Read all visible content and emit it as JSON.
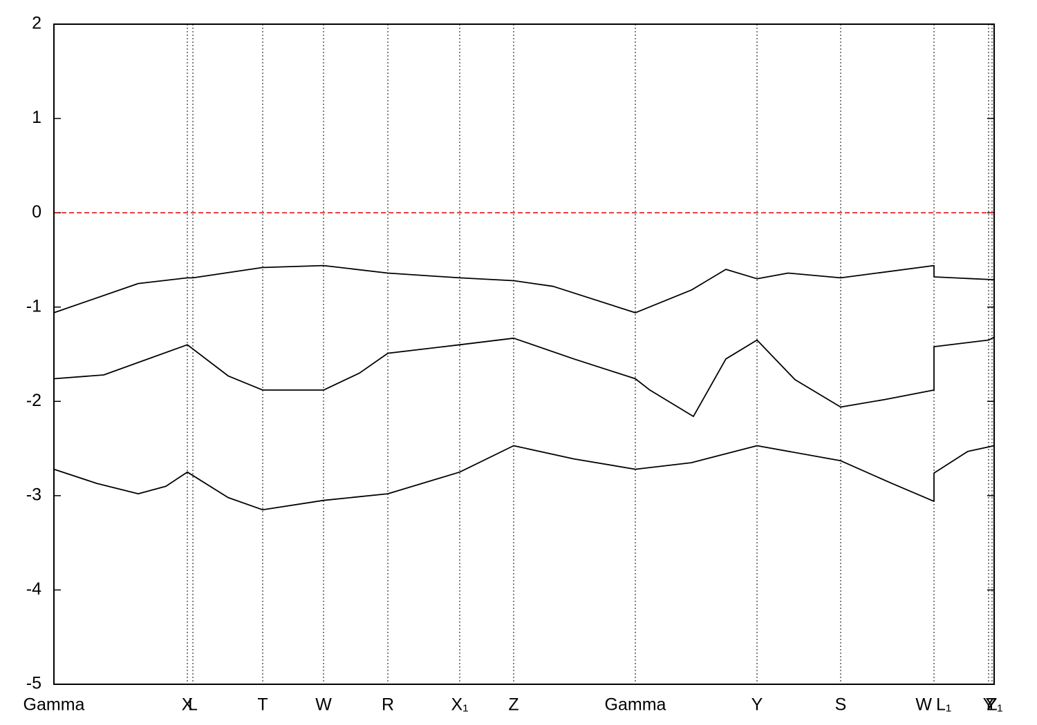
{
  "chart_data": {
    "type": "line",
    "xlim": [
      0,
      13.6
    ],
    "ylim": [
      -5,
      2
    ],
    "yticks": [
      -5,
      -4,
      -3,
      -2,
      -1,
      0,
      1,
      2
    ],
    "kpoints": [
      {
        "label": "Gamma",
        "x": 0
      },
      {
        "label": "X",
        "x": 1.93
      },
      {
        "label": "L",
        "x": 2.01
      },
      {
        "label": "T",
        "x": 3.02
      },
      {
        "label": "W",
        "x": 3.9
      },
      {
        "label": "R",
        "x": 4.83
      },
      {
        "label": "X₁",
        "x": 5.87
      },
      {
        "label": "Z",
        "x": 6.65
      },
      {
        "label": "Gamma",
        "x": 8.41
      },
      {
        "label": "Y",
        "x": 10.17
      },
      {
        "label": "S",
        "x": 11.38
      },
      {
        "label": "W",
        "x": 12.73
      },
      {
        "label": "L₁",
        "x": 12.73
      },
      {
        "label": "Y",
        "x": 13.52
      },
      {
        "label": "Z",
        "x": 13.57
      },
      {
        "label": "Y₁",
        "x": 13.6
      }
    ],
    "fermi_level": 0,
    "fermi_color": "#e00000",
    "series": [
      {
        "color": "#000000",
        "x": [
          0,
          1.22,
          1.93,
          2.01,
          3.02,
          3.9,
          4.83,
          5.87,
          6.65,
          7.22,
          8.41,
          9.22,
          9.72,
          10.17,
          10.62,
          11.38,
          12.73,
          12.73,
          13.6
        ],
        "values": [
          -1.06,
          -0.75,
          -0.69,
          -0.69,
          -0.58,
          -0.56,
          -0.64,
          -0.69,
          -0.72,
          -0.78,
          -1.06,
          -0.82,
          -0.6,
          -0.7,
          -0.64,
          -0.69,
          -0.56,
          -0.68,
          -0.71
        ]
      },
      {
        "color": "#000000",
        "x": [
          0,
          0.72,
          1.93,
          2.52,
          3.02,
          3.9,
          4.42,
          4.83,
          5.87,
          6.65,
          7.52,
          8.41,
          8.62,
          9.25,
          9.72,
          10.17,
          10.72,
          11.38,
          12.02,
          12.73,
          12.73,
          13.52,
          13.6
        ],
        "values": [
          -1.76,
          -1.72,
          -1.4,
          -1.73,
          -1.88,
          -1.88,
          -1.7,
          -1.49,
          -1.4,
          -1.33,
          -1.55,
          -1.76,
          -1.88,
          -2.16,
          -1.55,
          -1.35,
          -1.77,
          -2.06,
          -1.98,
          -1.88,
          -1.42,
          -1.35,
          -1.32
        ]
      },
      {
        "color": "#000000",
        "x": [
          0,
          0.62,
          1.22,
          1.62,
          1.93,
          2.52,
          3.02,
          3.9,
          4.83,
          5.87,
          6.65,
          7.52,
          8.41,
          9.22,
          10.17,
          11.38,
          12.12,
          12.73,
          12.73,
          13.22,
          13.6
        ],
        "values": [
          -2.72,
          -2.87,
          -2.98,
          -2.9,
          -2.75,
          -3.02,
          -3.15,
          -3.05,
          -2.98,
          -2.75,
          -2.47,
          -2.61,
          -2.72,
          -2.65,
          -2.47,
          -2.63,
          -2.87,
          -3.06,
          -2.76,
          -2.53,
          -2.47
        ]
      }
    ]
  }
}
